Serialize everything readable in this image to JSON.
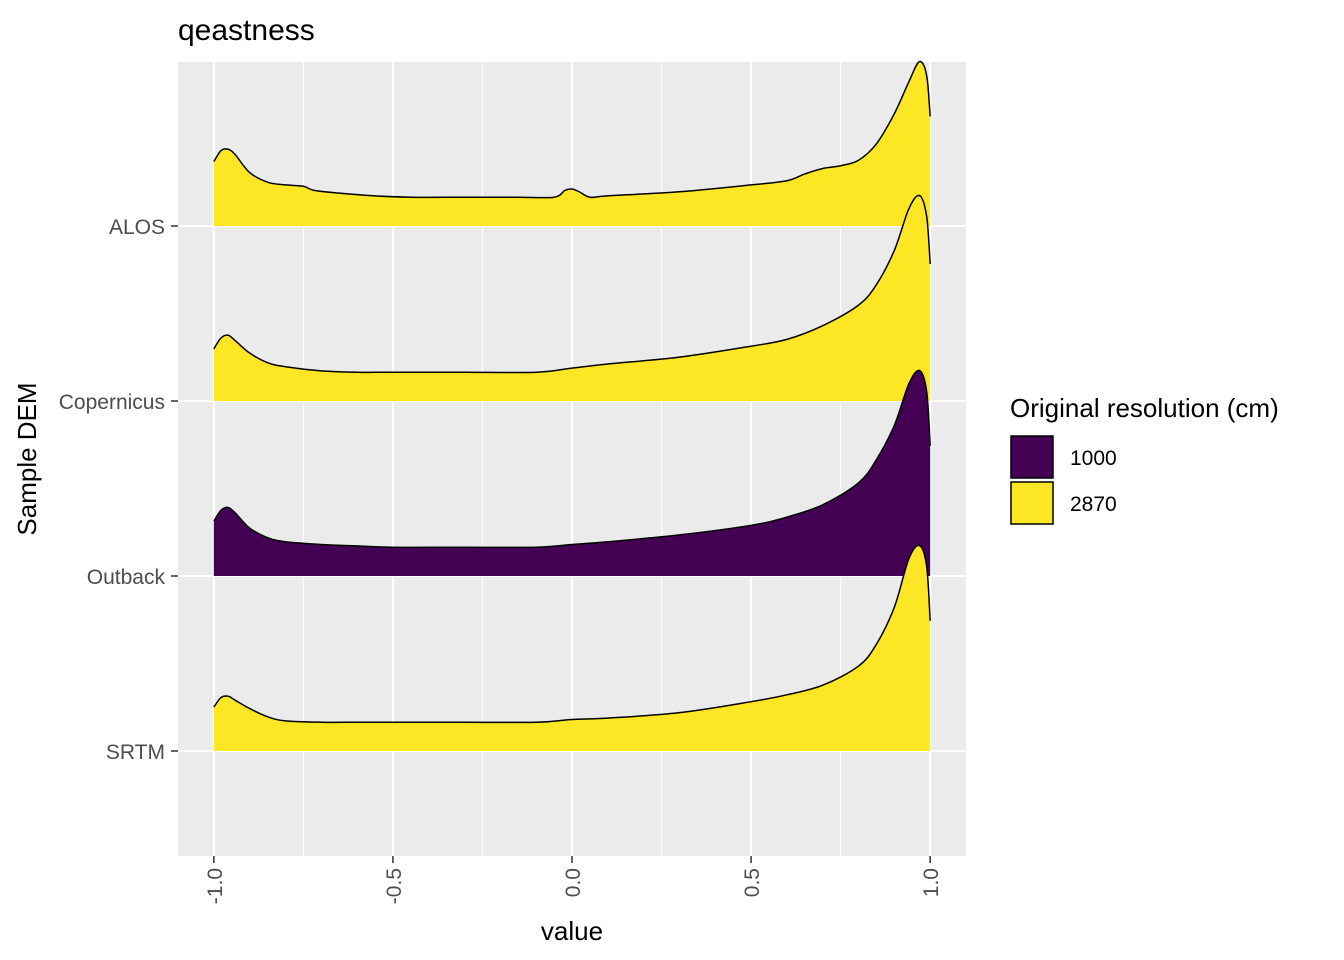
{
  "chart_data": {
    "type": "ridgeline-density",
    "title": "qeastness",
    "xlabel": "value",
    "ylabel": "Sample DEM",
    "xlim": [
      -1.1,
      1.1
    ],
    "x_ticks": [
      -1.0,
      -0.5,
      0.0,
      0.5,
      1.0
    ],
    "x_tick_labels": [
      "-1.0",
      "-0.5",
      "0.0",
      "0.5",
      "1.0"
    ],
    "categories": [
      "ALOS",
      "Copernicus",
      "Outback",
      "SRTM"
    ],
    "legend": {
      "title": "Original resolution (cm)",
      "position": "right",
      "entries": [
        {
          "label": "1000",
          "color": "#440154"
        },
        {
          "label": "2870",
          "color": "#FDE725"
        }
      ]
    },
    "grid": true,
    "series": [
      {
        "category": "ALOS",
        "resolution": "2870",
        "x": [
          -1.0,
          -0.98,
          -0.96,
          -0.94,
          -0.9,
          -0.85,
          -0.8,
          -0.75,
          -0.72,
          -0.65,
          -0.55,
          -0.45,
          -0.3,
          -0.15,
          -0.05,
          -0.02,
          0.0,
          0.02,
          0.05,
          0.1,
          0.3,
          0.5,
          0.6,
          0.65,
          0.7,
          0.75,
          0.8,
          0.85,
          0.9,
          0.94,
          0.97,
          0.99,
          1.0
        ],
        "y": [
          0.47,
          0.55,
          0.56,
          0.52,
          0.39,
          0.32,
          0.3,
          0.29,
          0.26,
          0.24,
          0.22,
          0.21,
          0.21,
          0.21,
          0.21,
          0.26,
          0.27,
          0.25,
          0.21,
          0.22,
          0.25,
          0.3,
          0.33,
          0.38,
          0.42,
          0.44,
          0.48,
          0.6,
          0.82,
          1.05,
          1.2,
          1.1,
          0.8
        ]
      },
      {
        "category": "Copernicus",
        "resolution": "2870",
        "x": [
          -1.0,
          -0.98,
          -0.96,
          -0.94,
          -0.9,
          -0.85,
          -0.8,
          -0.7,
          -0.6,
          -0.5,
          -0.3,
          -0.1,
          0.0,
          0.1,
          0.3,
          0.5,
          0.6,
          0.7,
          0.8,
          0.85,
          0.9,
          0.94,
          0.97,
          0.99,
          1.0
        ],
        "y": [
          0.38,
          0.46,
          0.48,
          0.44,
          0.35,
          0.28,
          0.25,
          0.22,
          0.21,
          0.21,
          0.21,
          0.21,
          0.24,
          0.27,
          0.32,
          0.4,
          0.45,
          0.55,
          0.7,
          0.85,
          1.1,
          1.4,
          1.5,
          1.35,
          1.0
        ]
      },
      {
        "category": "Outback",
        "resolution": "1000",
        "x": [
          -1.0,
          -0.98,
          -0.96,
          -0.94,
          -0.9,
          -0.85,
          -0.8,
          -0.7,
          -0.6,
          -0.5,
          -0.3,
          -0.1,
          0.0,
          0.1,
          0.3,
          0.5,
          0.6,
          0.7,
          0.8,
          0.85,
          0.9,
          0.94,
          0.97,
          0.99,
          1.0
        ],
        "y": [
          0.4,
          0.48,
          0.5,
          0.46,
          0.35,
          0.28,
          0.25,
          0.23,
          0.22,
          0.21,
          0.21,
          0.21,
          0.23,
          0.25,
          0.3,
          0.37,
          0.43,
          0.52,
          0.68,
          0.85,
          1.1,
          1.4,
          1.5,
          1.35,
          0.95
        ]
      },
      {
        "category": "SRTM",
        "resolution": "2870",
        "x": [
          -1.0,
          -0.98,
          -0.96,
          -0.94,
          -0.9,
          -0.85,
          -0.8,
          -0.7,
          -0.6,
          -0.5,
          -0.3,
          -0.1,
          0.0,
          0.1,
          0.3,
          0.5,
          0.6,
          0.7,
          0.8,
          0.85,
          0.9,
          0.94,
          0.97,
          0.99,
          1.0
        ],
        "y": [
          0.32,
          0.39,
          0.4,
          0.37,
          0.31,
          0.25,
          0.22,
          0.21,
          0.21,
          0.21,
          0.21,
          0.21,
          0.23,
          0.24,
          0.28,
          0.36,
          0.41,
          0.48,
          0.62,
          0.78,
          1.05,
          1.4,
          1.5,
          1.35,
          0.95
        ]
      }
    ]
  }
}
